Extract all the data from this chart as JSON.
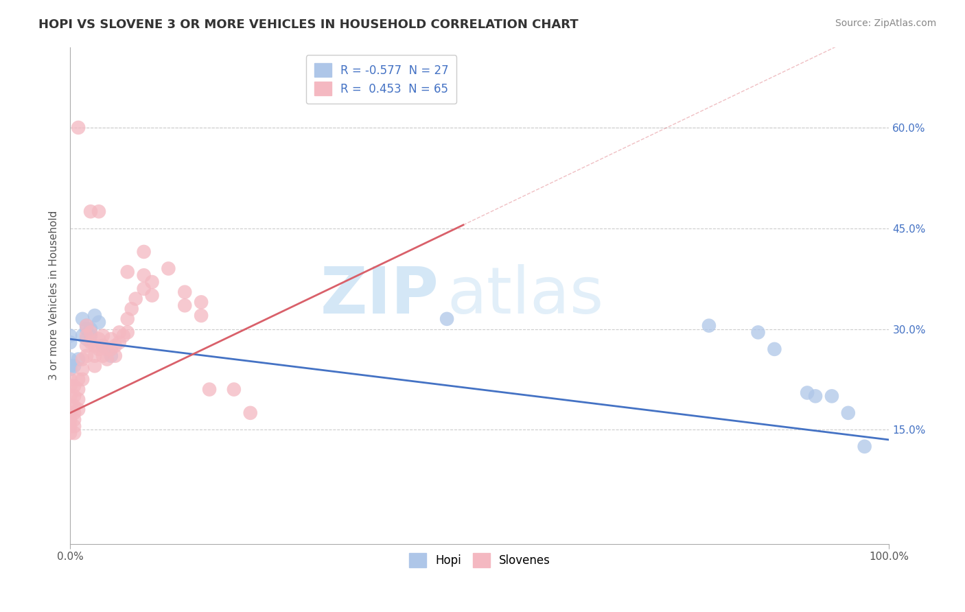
{
  "title": "HOPI VS SLOVENE 3 OR MORE VEHICLES IN HOUSEHOLD CORRELATION CHART",
  "source": "Source: ZipAtlas.com",
  "ylabel": "3 or more Vehicles in Household",
  "xlim": [
    0.0,
    1.0
  ],
  "ylim": [
    -0.02,
    0.72
  ],
  "yticks": [
    0.15,
    0.3,
    0.45,
    0.6
  ],
  "ytick_labels": [
    "15.0%",
    "30.0%",
    "45.0%",
    "60.0%"
  ],
  "xtick_left": 0.0,
  "xtick_right": 1.0,
  "xtick_left_label": "0.0%",
  "xtick_right_label": "100.0%",
  "legend_entries": [
    {
      "label": "R = -0.577  N = 27",
      "color": "#aec6e8"
    },
    {
      "label": "R =  0.453  N = 65",
      "color": "#f4b8c1"
    }
  ],
  "hopi_color": "#aec6e8",
  "slovene_color": "#f4b8c1",
  "hopi_line_color": "#4472c4",
  "slovene_line_color": "#d9606a",
  "hopi_line": [
    [
      0.0,
      0.285
    ],
    [
      1.0,
      0.135
    ]
  ],
  "slovene_line": [
    [
      0.0,
      0.175
    ],
    [
      0.48,
      0.455
    ]
  ],
  "slovene_line_extension": [
    [
      0.0,
      0.175
    ],
    [
      0.5,
      0.47
    ]
  ],
  "watermark_zip": "ZIP",
  "watermark_atlas": "atlas",
  "background_color": "#ffffff",
  "grid_color": "#cccccc",
  "hopi_points": [
    [
      0.0,
      0.29
    ],
    [
      0.0,
      0.28
    ],
    [
      0.0,
      0.255
    ],
    [
      0.0,
      0.245
    ],
    [
      0.0,
      0.24
    ],
    [
      0.005,
      0.245
    ],
    [
      0.01,
      0.255
    ],
    [
      0.015,
      0.315
    ],
    [
      0.015,
      0.29
    ],
    [
      0.02,
      0.305
    ],
    [
      0.02,
      0.3
    ],
    [
      0.02,
      0.285
    ],
    [
      0.025,
      0.3
    ],
    [
      0.025,
      0.29
    ],
    [
      0.03,
      0.32
    ],
    [
      0.035,
      0.31
    ],
    [
      0.04,
      0.275
    ],
    [
      0.05,
      0.26
    ],
    [
      0.46,
      0.315
    ],
    [
      0.78,
      0.305
    ],
    [
      0.84,
      0.295
    ],
    [
      0.86,
      0.27
    ],
    [
      0.9,
      0.205
    ],
    [
      0.91,
      0.2
    ],
    [
      0.93,
      0.2
    ],
    [
      0.95,
      0.175
    ],
    [
      0.97,
      0.125
    ]
  ],
  "slovene_points": [
    [
      0.0,
      0.225
    ],
    [
      0.0,
      0.215
    ],
    [
      0.0,
      0.2
    ],
    [
      0.0,
      0.185
    ],
    [
      0.0,
      0.175
    ],
    [
      0.0,
      0.165
    ],
    [
      0.0,
      0.155
    ],
    [
      0.0,
      0.145
    ],
    [
      0.005,
      0.215
    ],
    [
      0.005,
      0.2
    ],
    [
      0.005,
      0.185
    ],
    [
      0.005,
      0.175
    ],
    [
      0.005,
      0.165
    ],
    [
      0.005,
      0.155
    ],
    [
      0.005,
      0.145
    ],
    [
      0.01,
      0.225
    ],
    [
      0.01,
      0.21
    ],
    [
      0.01,
      0.195
    ],
    [
      0.01,
      0.18
    ],
    [
      0.015,
      0.255
    ],
    [
      0.015,
      0.24
    ],
    [
      0.015,
      0.225
    ],
    [
      0.02,
      0.305
    ],
    [
      0.02,
      0.29
    ],
    [
      0.02,
      0.275
    ],
    [
      0.02,
      0.26
    ],
    [
      0.025,
      0.295
    ],
    [
      0.025,
      0.28
    ],
    [
      0.03,
      0.275
    ],
    [
      0.03,
      0.26
    ],
    [
      0.03,
      0.245
    ],
    [
      0.035,
      0.285
    ],
    [
      0.035,
      0.27
    ],
    [
      0.04,
      0.29
    ],
    [
      0.04,
      0.275
    ],
    [
      0.04,
      0.26
    ],
    [
      0.045,
      0.27
    ],
    [
      0.045,
      0.255
    ],
    [
      0.05,
      0.285
    ],
    [
      0.05,
      0.27
    ],
    [
      0.055,
      0.275
    ],
    [
      0.055,
      0.26
    ],
    [
      0.06,
      0.295
    ],
    [
      0.06,
      0.28
    ],
    [
      0.065,
      0.29
    ],
    [
      0.07,
      0.315
    ],
    [
      0.07,
      0.295
    ],
    [
      0.075,
      0.33
    ],
    [
      0.08,
      0.345
    ],
    [
      0.09,
      0.38
    ],
    [
      0.09,
      0.36
    ],
    [
      0.1,
      0.37
    ],
    [
      0.1,
      0.35
    ],
    [
      0.12,
      0.39
    ],
    [
      0.14,
      0.355
    ],
    [
      0.14,
      0.335
    ],
    [
      0.16,
      0.34
    ],
    [
      0.16,
      0.32
    ],
    [
      0.17,
      0.21
    ],
    [
      0.2,
      0.21
    ],
    [
      0.22,
      0.175
    ],
    [
      0.01,
      0.6
    ],
    [
      0.025,
      0.475
    ],
    [
      0.035,
      0.475
    ],
    [
      0.07,
      0.385
    ],
    [
      0.09,
      0.415
    ]
  ]
}
